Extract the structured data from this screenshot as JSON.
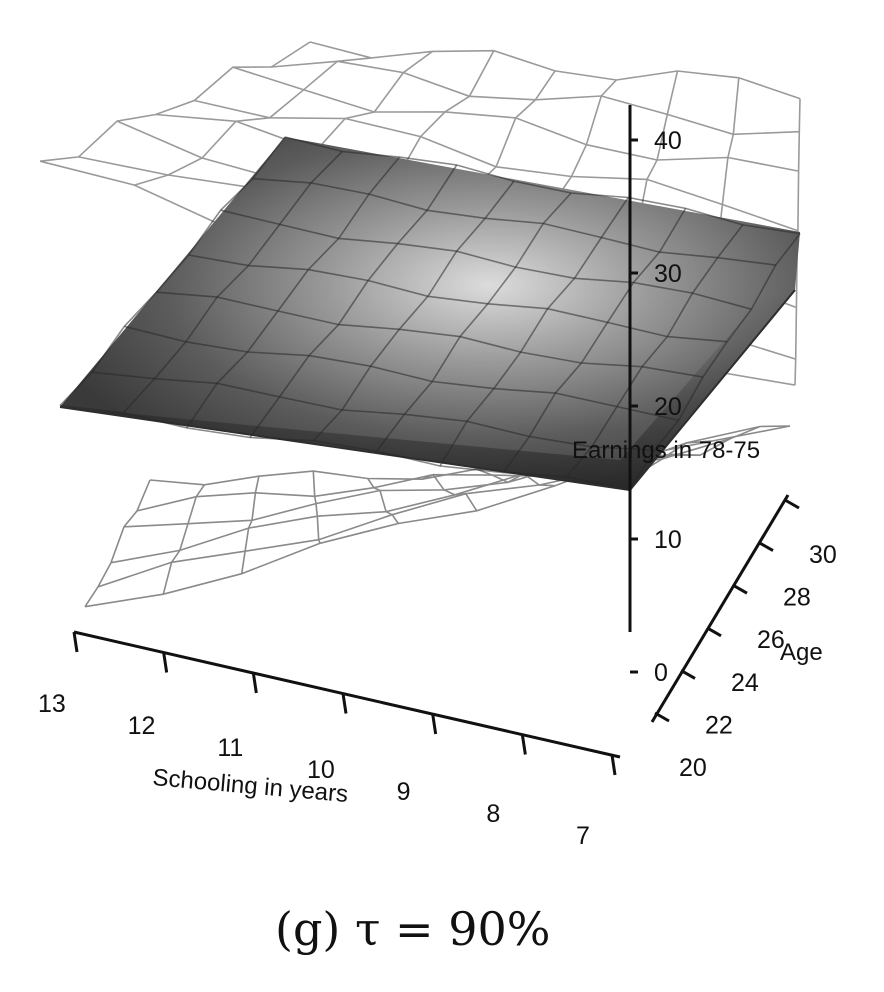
{
  "chart_data": {
    "type": "surface3d",
    "caption": "(g) τ = 90%",
    "axes": {
      "x": {
        "label": "Schooling in years",
        "ticks": [
          "13",
          "12",
          "11",
          "10",
          "9",
          "8",
          "7"
        ]
      },
      "y": {
        "label": "Age",
        "ticks": [
          "20",
          "22",
          "24",
          "26",
          "28",
          "30"
        ]
      },
      "z": {
        "label": "Earnings in 78-75",
        "ticks": [
          "0",
          "10",
          "20",
          "30",
          "40"
        ],
        "range": [
          0,
          40
        ]
      }
    },
    "layers": [
      {
        "name": "shaded surface",
        "style": "gray shaded",
        "approx_level": 24
      },
      {
        "name": "upper wireframe",
        "style": "light gray mesh"
      },
      {
        "name": "lower wireframe",
        "style": "light gray mesh"
      }
    ],
    "grid": false,
    "colors": {
      "surface_dark": "#3c3c3c",
      "surface_light": "#d4d4d4",
      "wire": "#8a8a8a",
      "axis": "#111111"
    }
  }
}
